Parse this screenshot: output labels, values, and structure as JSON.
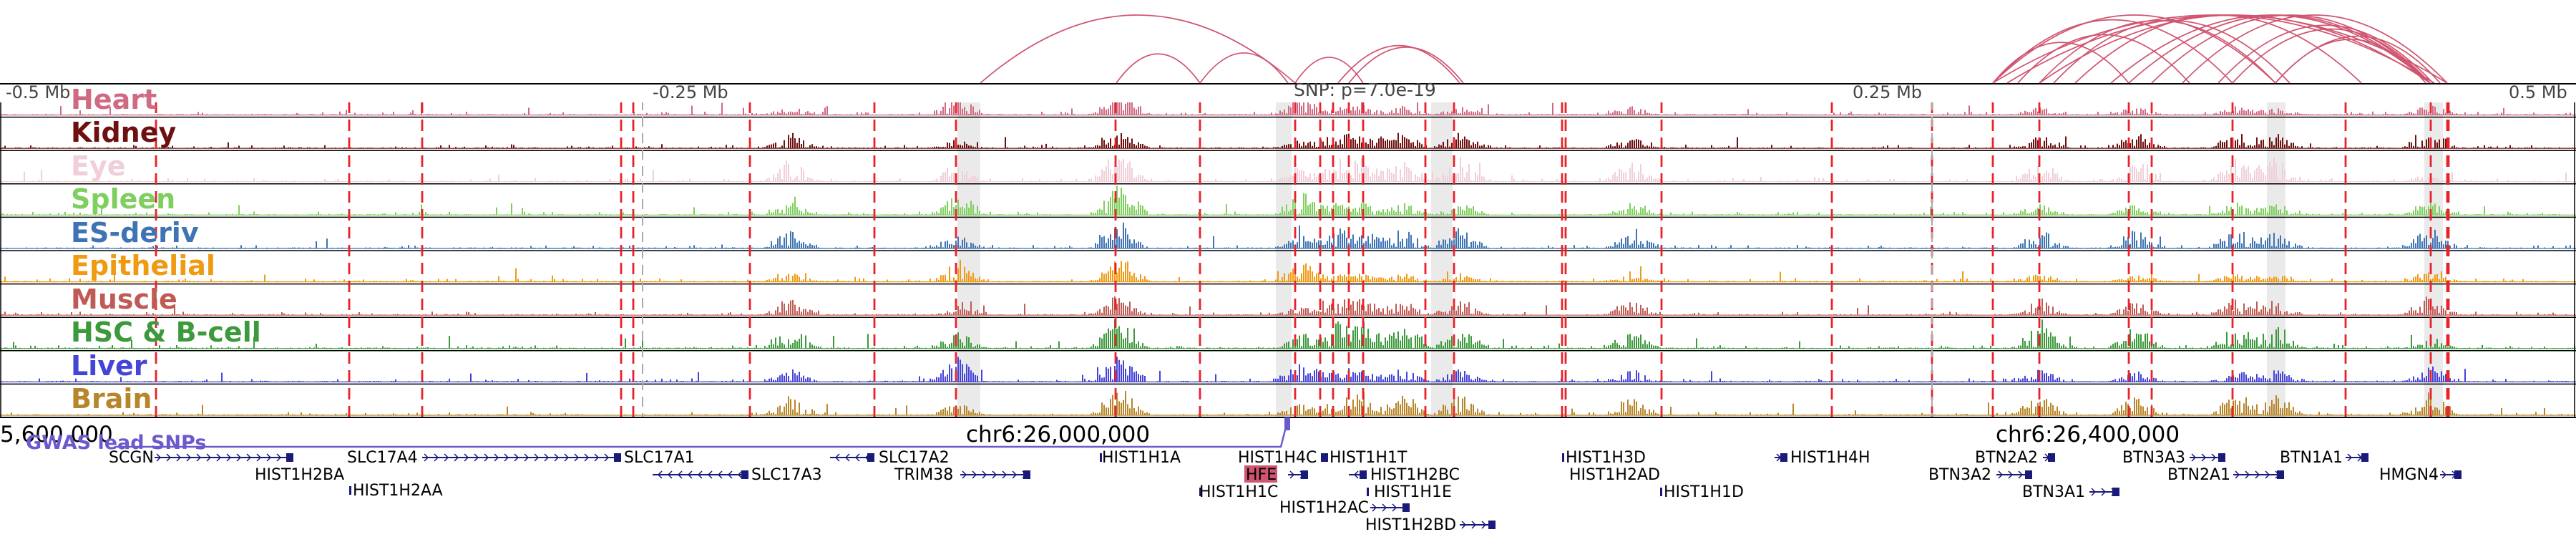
{
  "ruler": {
    "labels": [
      "-0.5 Mb",
      "-0.25 Mb",
      "0.25 Mb",
      "0.5 Mb"
    ],
    "snp_label": "SNP: p=7.0e-19"
  },
  "tracks": [
    {
      "label": "Heart",
      "color": "#d06a82"
    },
    {
      "label": "Kidney",
      "color": "#6e1010"
    },
    {
      "label": "Eye",
      "color": "#f0cfd9"
    },
    {
      "label": "Spleen",
      "color": "#7fcf5f"
    },
    {
      "label": "ES-deriv",
      "color": "#3f74b4"
    },
    {
      "label": "Epithelial",
      "color": "#f09a12"
    },
    {
      "label": "Muscle",
      "color": "#c05a55"
    },
    {
      "label": "HSC & B-cell",
      "color": "#3c9a3c"
    },
    {
      "label": "Liver",
      "color": "#4444d8"
    },
    {
      "label": "Brain",
      "color": "#b8862a"
    }
  ],
  "axis": {
    "coordinates": [
      "5,600,000",
      "chr6:26,000,000",
      "chr6:26,400,000"
    ]
  },
  "gwas": {
    "label": "GWAS lead SNPs",
    "color": "#6a5acd"
  },
  "genes": [
    {
      "name": "SCGN"
    },
    {
      "name": "SLC17A4"
    },
    {
      "name": "SLC17A1"
    },
    {
      "name": "SLC17A2"
    },
    {
      "name": "HIST1H2BA"
    },
    {
      "name": "HIST1H2AA"
    },
    {
      "name": "SLC17A3"
    },
    {
      "name": "TRIM38"
    },
    {
      "name": "HIST1H1A"
    },
    {
      "name": "HIST1H4C"
    },
    {
      "name": "HFE"
    },
    {
      "name": "HIST1H1C"
    },
    {
      "name": "HIST1H1T"
    },
    {
      "name": "HIST1H2BC"
    },
    {
      "name": "HIST1H1E"
    },
    {
      "name": "HIST1H2AC"
    },
    {
      "name": "HIST1H2BD"
    },
    {
      "name": "HIST1H3D"
    },
    {
      "name": "HIST1H2AD"
    },
    {
      "name": "HIST1H1D"
    },
    {
      "name": "HIST1H4H"
    },
    {
      "name": "BTN2A2"
    },
    {
      "name": "BTN3A2"
    },
    {
      "name": "BTN3A1"
    },
    {
      "name": "BTN3A3"
    },
    {
      "name": "BTN2A1"
    },
    {
      "name": "BTN1A1"
    },
    {
      "name": "HMGN4"
    }
  ],
  "colors": {
    "arc": "#d05570",
    "enhancer_line": "#e8222a",
    "highlight": "#d8d8d8",
    "gene_body": "#1a1a7a",
    "hfe_highlight": "#d05570"
  }
}
